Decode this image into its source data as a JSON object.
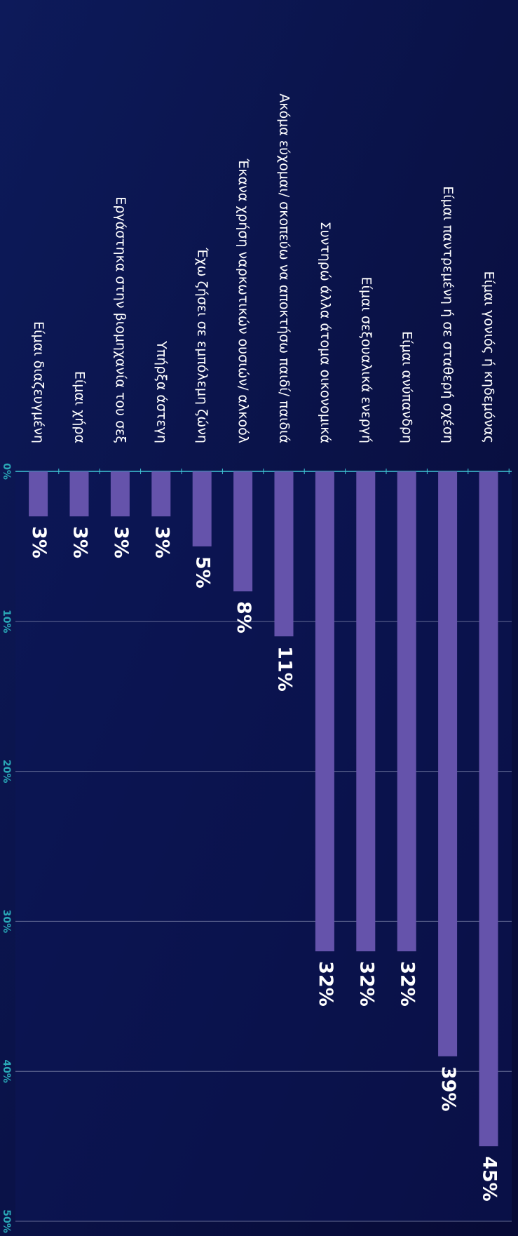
{
  "chart_data": {
    "type": "bar",
    "categories": [
      "Είμαι γονιός ή κηδεμόνας",
      "Είμαι παντρεμένη ή σε σταθερή σχέση",
      "Είμαι ανύπανδρη",
      "Είμαι σεξουαλικά ενεργή",
      "Συντηρώ άλλα άτομα οικονομικά",
      "Ακόμα εύχομαι/ σκοπεύω να αποκτήσω παιδί/ παιδιά",
      "Έκανα χρήση ναρκωτικών ουσιών/ αλκοόλ",
      "Έχω ζήσει σε εμπόλεμη ζώνη",
      "Υπήρξα άστεγη",
      "Εργάστηκα στην βιομηχανία του σεξ",
      "Είμαι χήρα",
      "Είμαι διαζευγμένη"
    ],
    "values": [
      45,
      39,
      32,
      32,
      32,
      11,
      8,
      5,
      3,
      3,
      3,
      3
    ],
    "value_labels": [
      "45%",
      "39%",
      "32%",
      "32%",
      "32%",
      "11%",
      "8%",
      "5%",
      "3%",
      "3%",
      "3%",
      "3%"
    ],
    "color": "#6553ab",
    "ylim": [
      0,
      50
    ],
    "yticks": [
      {
        "value": 0,
        "label": "0%"
      },
      {
        "value": 10,
        "label": "10%"
      },
      {
        "value": 20,
        "label": "20%"
      },
      {
        "value": 30,
        "label": "30%"
      },
      {
        "value": 40,
        "label": "40%"
      },
      {
        "value": 50,
        "label": "50%"
      }
    ],
    "grid": true
  }
}
